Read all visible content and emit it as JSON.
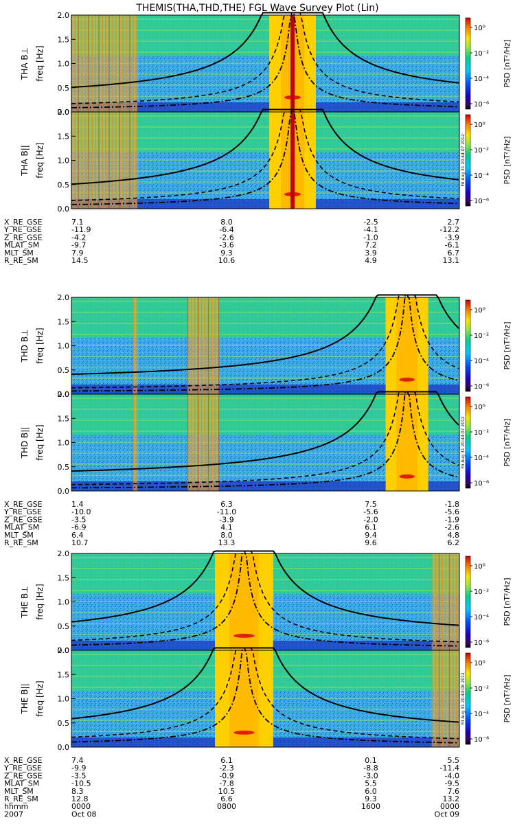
{
  "title": "THEMIS(THA,THD,THE) FGL Wave Survey Plot (Lin)",
  "colors": {
    "perp_line": "#000000",
    "par_line": "#000000"
  },
  "chart_data": [
    {
      "type": "heatmap",
      "probe": "THA",
      "panels": [
        {
          "label": "THA B⊥",
          "ylabel": "freq [Hz]"
        },
        {
          "label": "THA B||",
          "ylabel": "freq [Hz]"
        }
      ],
      "ylim": [
        0,
        2.0
      ],
      "yticks": [
        "0.0",
        "0.5",
        "1.0",
        "1.5",
        "2.0"
      ],
      "colorbar": {
        "label": "PSD [nT²/Hz]",
        "ticks": [
          "10⁰",
          "10⁻²",
          "10⁻⁴",
          "10⁻⁶"
        ],
        "stamp": "Fri Aug 31 20:44:07 2012"
      },
      "ephemeris": {
        "labels": [
          "X_RE_GSE",
          "Y_RE_GSE",
          "Z_RE_GSE",
          "MLAT_SM",
          "MLT_SM",
          "R_RE_SM"
        ],
        "values": [
          [
            "7.1",
            "8.0",
            "-2.5",
            "2.7"
          ],
          [
            "-11.9",
            "-6.4",
            "-4.1",
            "-12.2"
          ],
          [
            "-4.2",
            "-2.6",
            "-1.0",
            "-3.9"
          ],
          [
            "-9.7",
            "-3.6",
            "7.2",
            "-6.1"
          ],
          [
            "7.9",
            "9.3",
            "3.9",
            "6.7"
          ],
          [
            "14.5",
            "10.6",
            "4.9",
            "13.1"
          ]
        ]
      }
    },
    {
      "type": "heatmap",
      "probe": "THD",
      "panels": [
        {
          "label": "THD B⊥",
          "ylabel": "freq [Hz]"
        },
        {
          "label": "THD B||",
          "ylabel": "freq [Hz]"
        }
      ],
      "ylim": [
        0,
        2.0
      ],
      "yticks": [
        "0.0",
        "0.5",
        "1.0",
        "1.5",
        "2.0"
      ],
      "colorbar": {
        "label": "PSD [nT²/Hz]",
        "ticks": [
          "10⁰",
          "10⁻²",
          "10⁻⁴",
          "10⁻⁶"
        ],
        "stamp": "Fri Aug 31 20:44:07 2012"
      },
      "ephemeris": {
        "labels": [
          "X_RE_GSE",
          "Y_RE_GSE",
          "Z_RE_GSE",
          "MLAT_SM",
          "MLT_SM",
          "R_RE_SM"
        ],
        "values": [
          [
            "1.4",
            "6.3",
            "7.5",
            "-1.8"
          ],
          [
            "-10.0",
            "-11.0",
            "-5.6",
            "-5.6"
          ],
          [
            "-3.5",
            "-3.9",
            "-2.0",
            "-1.9"
          ],
          [
            "-6.9",
            "4.1",
            "6.1",
            "-2.6"
          ],
          [
            "6.4",
            "8.0",
            "9.4",
            "4.8"
          ],
          [
            "10.7",
            "13.3",
            "9.6",
            "6.2"
          ]
        ]
      }
    },
    {
      "type": "heatmap",
      "probe": "THE",
      "panels": [
        {
          "label": "THE B⊥",
          "ylabel": "freq [Hz]"
        },
        {
          "label": "THE B||",
          "ylabel": "freq [Hz]"
        }
      ],
      "ylim": [
        0,
        2.0
      ],
      "yticks": [
        "0.0",
        "0.5",
        "1.0",
        "1.5",
        "2.0"
      ],
      "colorbar": {
        "label": "PSD [nT²/Hz]",
        "ticks": [
          "10⁰",
          "10⁻²",
          "10⁻⁴",
          "10⁻⁶"
        ],
        "stamp": "Fri Aug 31 20:44:08 2012"
      },
      "ephemeris": {
        "labels": [
          "X_RE_GSE",
          "Y_RE_GSE",
          "Z_RE_GSE",
          "MLAT_SM",
          "MLT_SM",
          "R_RE_SM"
        ],
        "values": [
          [
            "7.4",
            "6.1",
            "0.1",
            "5.5"
          ],
          [
            "-9.9",
            "-2.3",
            "-8.8",
            "-11.4"
          ],
          [
            "-3.5",
            "-0.9",
            "-3.0",
            "-4.0"
          ],
          [
            "-10.5",
            "-7.8",
            "5.5",
            "-9.5"
          ],
          [
            "8.3",
            "10.5",
            "6.0",
            "7.6"
          ],
          [
            "12.8",
            "6.6",
            "9.3",
            "13.2"
          ]
        ]
      },
      "time_axis": {
        "labels": [
          "hhmm",
          "2007"
        ],
        "row1": [
          "0000",
          "0800",
          "1600",
          "0000"
        ],
        "row2": [
          "Oct 08",
          "",
          "",
          "Oct 09"
        ]
      }
    }
  ]
}
